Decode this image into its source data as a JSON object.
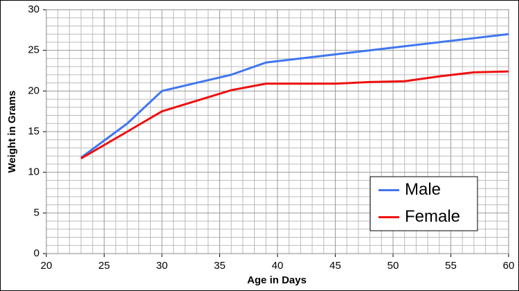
{
  "chart_data": {
    "type": "line",
    "x_label": "Age in Days",
    "y_label": "Weight in Grams",
    "x": [
      23,
      27,
      30,
      33,
      36,
      39,
      42,
      45,
      48,
      51,
      54,
      57,
      60
    ],
    "series": [
      {
        "name": "Male",
        "color": "#3f76f0",
        "values": [
          11.8,
          16,
          20,
          21,
          22,
          23.5,
          24,
          24.5,
          25,
          25.5,
          26,
          26.5,
          27
        ]
      },
      {
        "name": "Female",
        "color": "#ee1010",
        "values": [
          11.7,
          15,
          17.5,
          18.8,
          20.1,
          20.9,
          20.9,
          20.9,
          21.1,
          21.2,
          21.8,
          22.3,
          22.4
        ]
      }
    ],
    "xlim": [
      20,
      60
    ],
    "xticks": [
      20,
      25,
      30,
      35,
      40,
      45,
      50,
      55,
      60
    ],
    "ylim": [
      0,
      30
    ],
    "yticks": [
      0,
      5,
      10,
      15,
      20,
      25,
      30
    ],
    "grid": true,
    "legend": "lower right"
  }
}
